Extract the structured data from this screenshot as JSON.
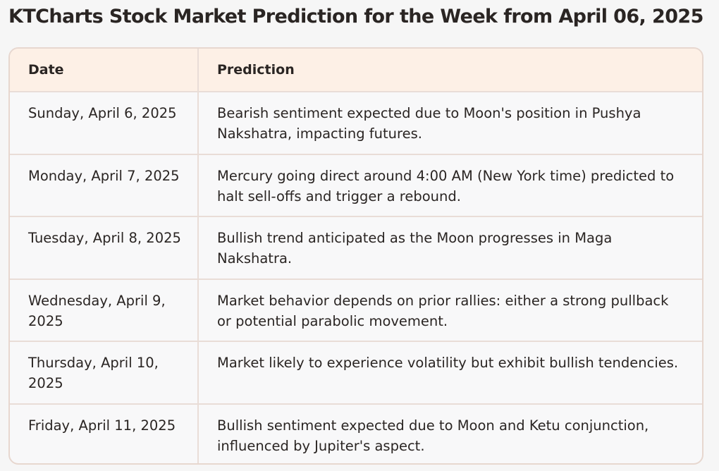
{
  "title": "KTCharts Stock Market Prediction for the Week from April 06, 2025",
  "table": {
    "headers": [
      "Date",
      "Prediction"
    ],
    "rows": [
      {
        "date": "Sunday, April 6, 2025",
        "prediction": "Bearish sentiment expected due to Moon's position in Pushya Nakshatra, impacting futures."
      },
      {
        "date": "Monday, April 7, 2025",
        "prediction": "Mercury going direct around 4:00 AM (New York time) predicted to halt sell-offs and trigger a rebound."
      },
      {
        "date": "Tuesday, April 8, 2025",
        "prediction": "Bullish trend anticipated as the Moon progresses in Maga Nakshatra."
      },
      {
        "date": "Wednesday, April 9, 2025",
        "prediction": "Market behavior depends on prior rallies: either a strong pullback or potential parabolic movement."
      },
      {
        "date": "Thursday, April 10, 2025",
        "prediction": "Market likely to experience volatility but exhibit bullish tendencies."
      },
      {
        "date": "Friday, April 11, 2025",
        "prediction": "Bullish sentiment expected due to Moon and Ketu conjunction, influenced by Jupiter's aspect."
      }
    ]
  },
  "colors": {
    "header_bg": "#fdf0e6",
    "border": "#e9ddd7",
    "text": "#2a2523"
  }
}
